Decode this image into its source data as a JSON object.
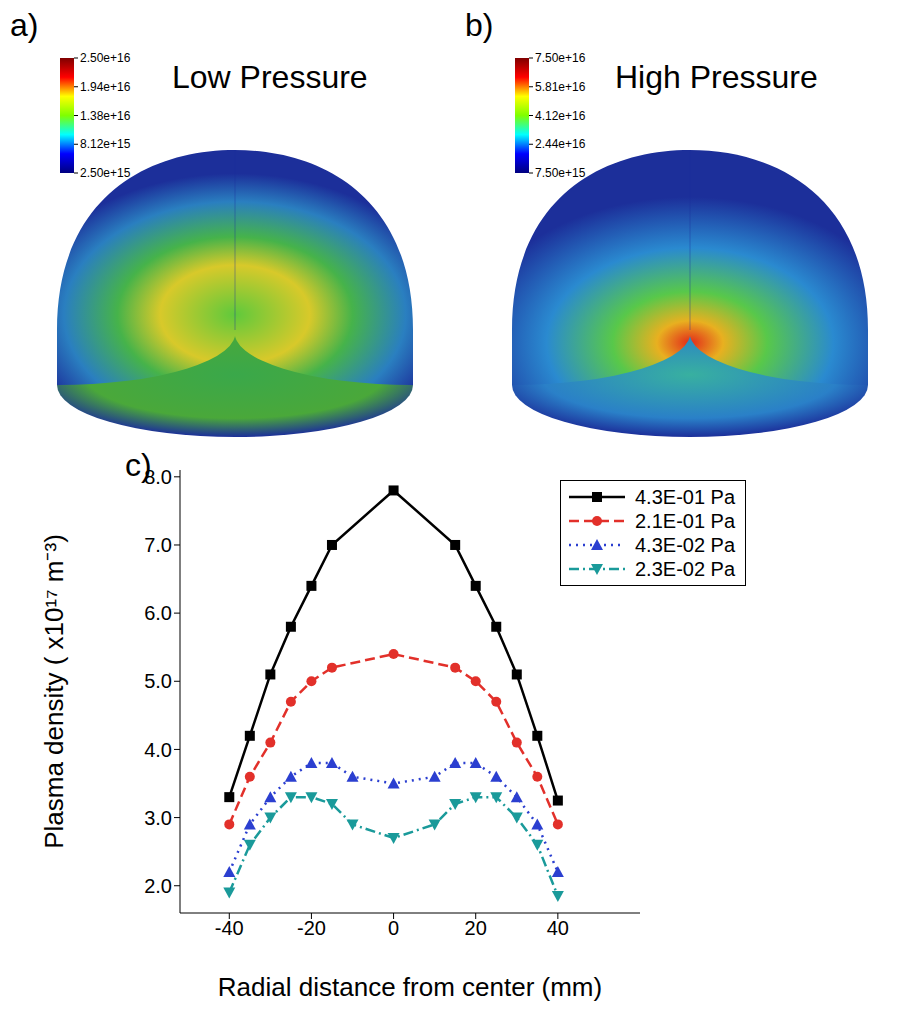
{
  "panels": [
    {
      "letter": "a)",
      "title": "Low Pressure",
      "colorbar": {
        "range": [
          2500000000000000.0,
          2.5e+16
        ],
        "ticks": [
          {
            "value": 2.5e+16,
            "label": "2.50e+16"
          },
          {
            "value": 1.9375e+16,
            "label": "1.94e+16"
          },
          {
            "value": 1.375e+16,
            "label": "1.38e+16"
          },
          {
            "value": 8125000000000000.0,
            "label": "8.12e+15"
          },
          {
            "value": 2500000000000000.0,
            "label": "2.50e+15"
          }
        ]
      }
    },
    {
      "letter": "b)",
      "title": "High Pressure",
      "colorbar": {
        "range": [
          7500000000000000.0,
          7.5e+16
        ],
        "ticks": [
          {
            "value": 7.5e+16,
            "label": "7.50e+16"
          },
          {
            "value": 5.8125e+16,
            "label": "5.81e+16"
          },
          {
            "value": 4.125e+16,
            "label": "4.12e+16"
          },
          {
            "value": 2.4375e+16,
            "label": "2.44e+16"
          },
          {
            "value": 7500000000000000.0,
            "label": "7.50e+15"
          }
        ]
      }
    }
  ],
  "chart_data": {
    "type": "line",
    "panel_label": "c)",
    "xlabel": "Radial distance from center (mm)",
    "ylabel": "Plasma density ( x10¹⁷ m⁻³)",
    "xlim": [
      -52,
      60
    ],
    "xticks": [
      -40,
      -20,
      0,
      20,
      40
    ],
    "ylim": [
      1.6,
      8.1
    ],
    "yticks": [
      {
        "value": 2,
        "label": "2.0"
      },
      {
        "value": 3,
        "label": "3.0"
      },
      {
        "value": 4,
        "label": "4.0"
      },
      {
        "value": 5,
        "label": "5.0"
      },
      {
        "value": 6,
        "label": "6.0"
      },
      {
        "value": 7,
        "label": "7.0"
      },
      {
        "value": 8,
        "label": "8.0"
      }
    ],
    "grid": false,
    "legend": "top-right",
    "series": [
      {
        "name": "4.3E-01 Pa",
        "color": "#000000",
        "marker": "square",
        "line_style": "solid",
        "x": [
          -40,
          -35,
          -30,
          -25,
          -20,
          -15,
          0,
          15,
          20,
          25,
          30,
          35,
          40
        ],
        "values": [
          3.3,
          4.2,
          5.1,
          5.8,
          6.4,
          7.0,
          7.8,
          7.0,
          6.4,
          5.8,
          5.1,
          4.2,
          3.25
        ]
      },
      {
        "name": "2.1E-01 Pa",
        "color": "#e2302a",
        "marker": "circle",
        "line_style": "dashed",
        "x": [
          -40,
          -35,
          -30,
          -25,
          -20,
          -15,
          0,
          15,
          20,
          25,
          30,
          35,
          40
        ],
        "values": [
          2.9,
          3.6,
          4.1,
          4.7,
          5.0,
          5.2,
          5.4,
          5.2,
          5.0,
          4.7,
          4.1,
          3.6,
          2.9
        ]
      },
      {
        "name": "4.3E-02 Pa",
        "color": "#2b3fd0",
        "marker": "triangle",
        "line_style": "dotted",
        "x": [
          -40,
          -35,
          -30,
          -25,
          -20,
          -15,
          -10,
          0,
          10,
          15,
          20,
          25,
          30,
          35,
          40
        ],
        "values": [
          2.2,
          2.9,
          3.3,
          3.6,
          3.8,
          3.8,
          3.6,
          3.5,
          3.6,
          3.8,
          3.8,
          3.6,
          3.3,
          2.9,
          2.2
        ]
      },
      {
        "name": "2.3E-02 Pa",
        "color": "#1a9a9a",
        "marker": "triangle-down",
        "line_style": "dashdot",
        "x": [
          -40,
          -35,
          -30,
          -25,
          -20,
          -15,
          -10,
          0,
          10,
          15,
          20,
          25,
          30,
          35,
          40
        ],
        "values": [
          1.9,
          2.6,
          3.0,
          3.3,
          3.3,
          3.2,
          2.9,
          2.7,
          2.9,
          3.2,
          3.3,
          3.3,
          3.0,
          2.6,
          1.85
        ]
      }
    ]
  }
}
